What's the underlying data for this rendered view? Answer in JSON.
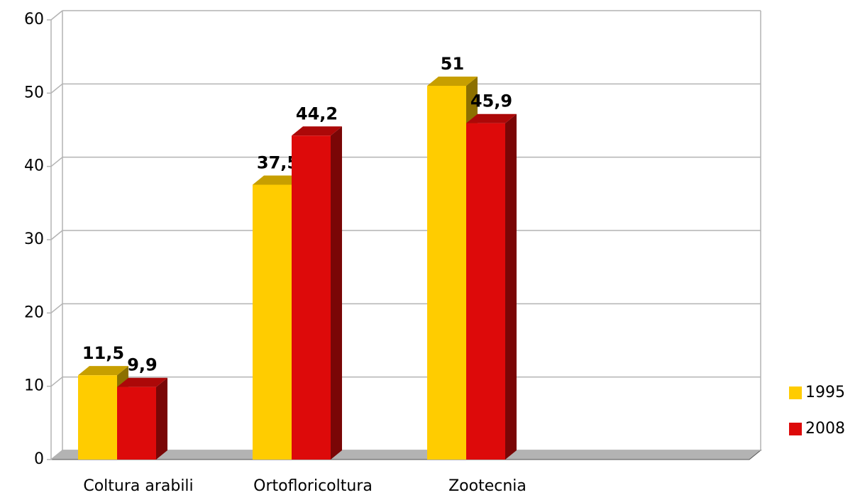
{
  "chart_data": {
    "type": "bar3d",
    "categories": [
      "Coltura arabili",
      "Ortofloricoltura",
      "Zootecnia",
      null
    ],
    "series": [
      {
        "name": "1995",
        "color": "#ffcc00",
        "values": [
          11.5,
          37.5,
          51,
          null
        ],
        "value_labels": [
          "11,5",
          "37,5",
          "51",
          null
        ]
      },
      {
        "name": "2008",
        "color": "#dd0a0a",
        "values": [
          9.9,
          44.2,
          45.9,
          null
        ],
        "value_labels": [
          "9,9",
          "44,2",
          "45,9",
          null
        ]
      }
    ],
    "ylim": [
      0,
      60
    ],
    "yticks": [
      0,
      10,
      20,
      30,
      40,
      50,
      60
    ],
    "grid": true,
    "legend": "right"
  }
}
